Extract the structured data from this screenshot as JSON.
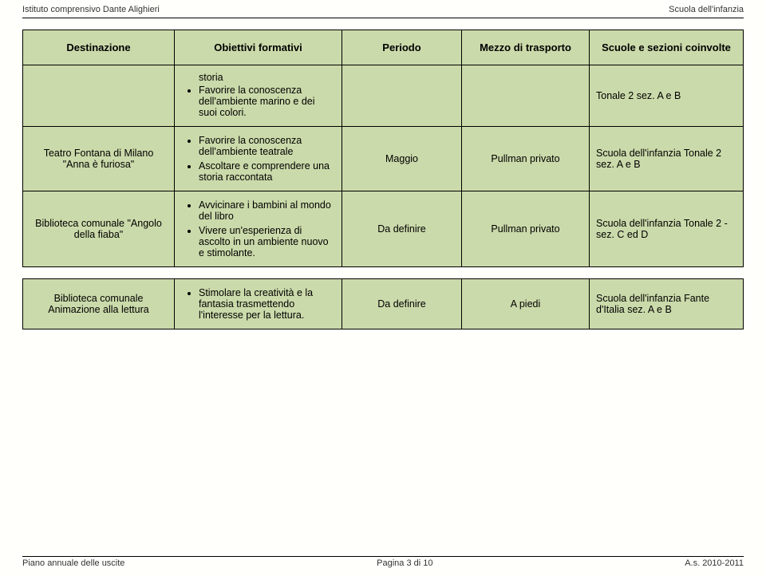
{
  "header": {
    "left": "Istituto comprensivo Dante Alighieri",
    "right": "Scuola dell'infanzia"
  },
  "columns": {
    "c1": "Destinazione",
    "c2": "Obiettivi formativi",
    "c3": "Periodo",
    "c4": "Mezzo di trasporto",
    "c5": "Scuole e sezioni coinvolte"
  },
  "rows": [
    {
      "dest": "",
      "obj_items": [
        "storia",
        "Favorire la conoscenza dell'ambiente marino e dei suoi colori."
      ],
      "obj_first_is_continuation": true,
      "periodo": "",
      "mezzo": "",
      "scuole": "Tonale 2 sez. A e B"
    },
    {
      "dest": "Teatro Fontana di Milano \"Anna è furiosa\"",
      "obj_items": [
        "Favorire la conoscenza dell'ambiente teatrale",
        "Ascoltare e comprendere una storia raccontata"
      ],
      "periodo": "Maggio",
      "mezzo": "Pullman privato",
      "scuole": "Scuola dell'infanzia Tonale 2 sez. A e B"
    },
    {
      "dest": "Biblioteca comunale \"Angolo della fiaba\"",
      "obj_items": [
        "Avvicinare i bambini al mondo del libro",
        "Vivere un'esperienza di ascolto in un ambiente nuovo e stimolante."
      ],
      "periodo": "Da definire",
      "mezzo": "Pullman privato",
      "scuole": "Scuola dell'infanzia Tonale 2 - sez. C ed D"
    }
  ],
  "rows2": [
    {
      "dest": "Biblioteca comunale Animazione alla lettura",
      "obj_items": [
        "Stimolare la creatività e la fantasia trasmettendo l'interesse per la lettura."
      ],
      "periodo": "Da definire",
      "mezzo": "A piedi",
      "scuole": "Scuola dell'infanzia Fante d'Italia sez. A e B"
    }
  ],
  "footer": {
    "left": "Piano annuale delle uscite",
    "center": "Pagina 3 di 10",
    "right": "A.s. 2010-2011"
  }
}
